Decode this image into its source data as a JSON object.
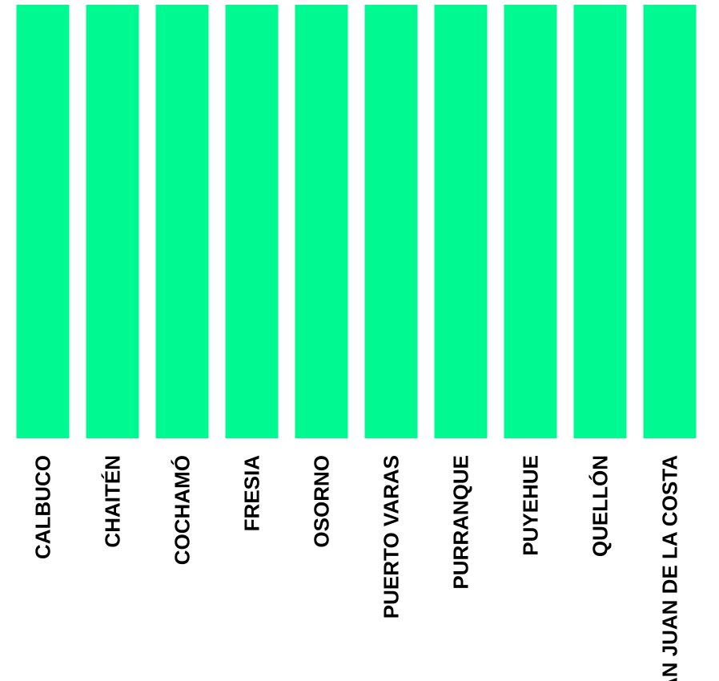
{
  "chart_data": {
    "type": "bar",
    "orientation": "vertical",
    "categories": [
      "CALBUCO",
      "CHAITÉN",
      "COCHAMÓ",
      "FRESIA",
      "OSORNO",
      "PUERTO VARAS",
      "PURRANQUE",
      "PUYEHUE",
      "QUELLÓN",
      "SAN JUAN DE LA COSTA"
    ],
    "values": [
      1,
      1,
      1,
      1,
      1,
      1,
      1,
      1,
      1,
      1
    ],
    "ylim": [
      0,
      1
    ],
    "title": "",
    "xlabel": "",
    "ylabel": "",
    "grid": false,
    "bar_color": "#00FA91",
    "label_rotation": "vertical (bottom-to-top)"
  }
}
